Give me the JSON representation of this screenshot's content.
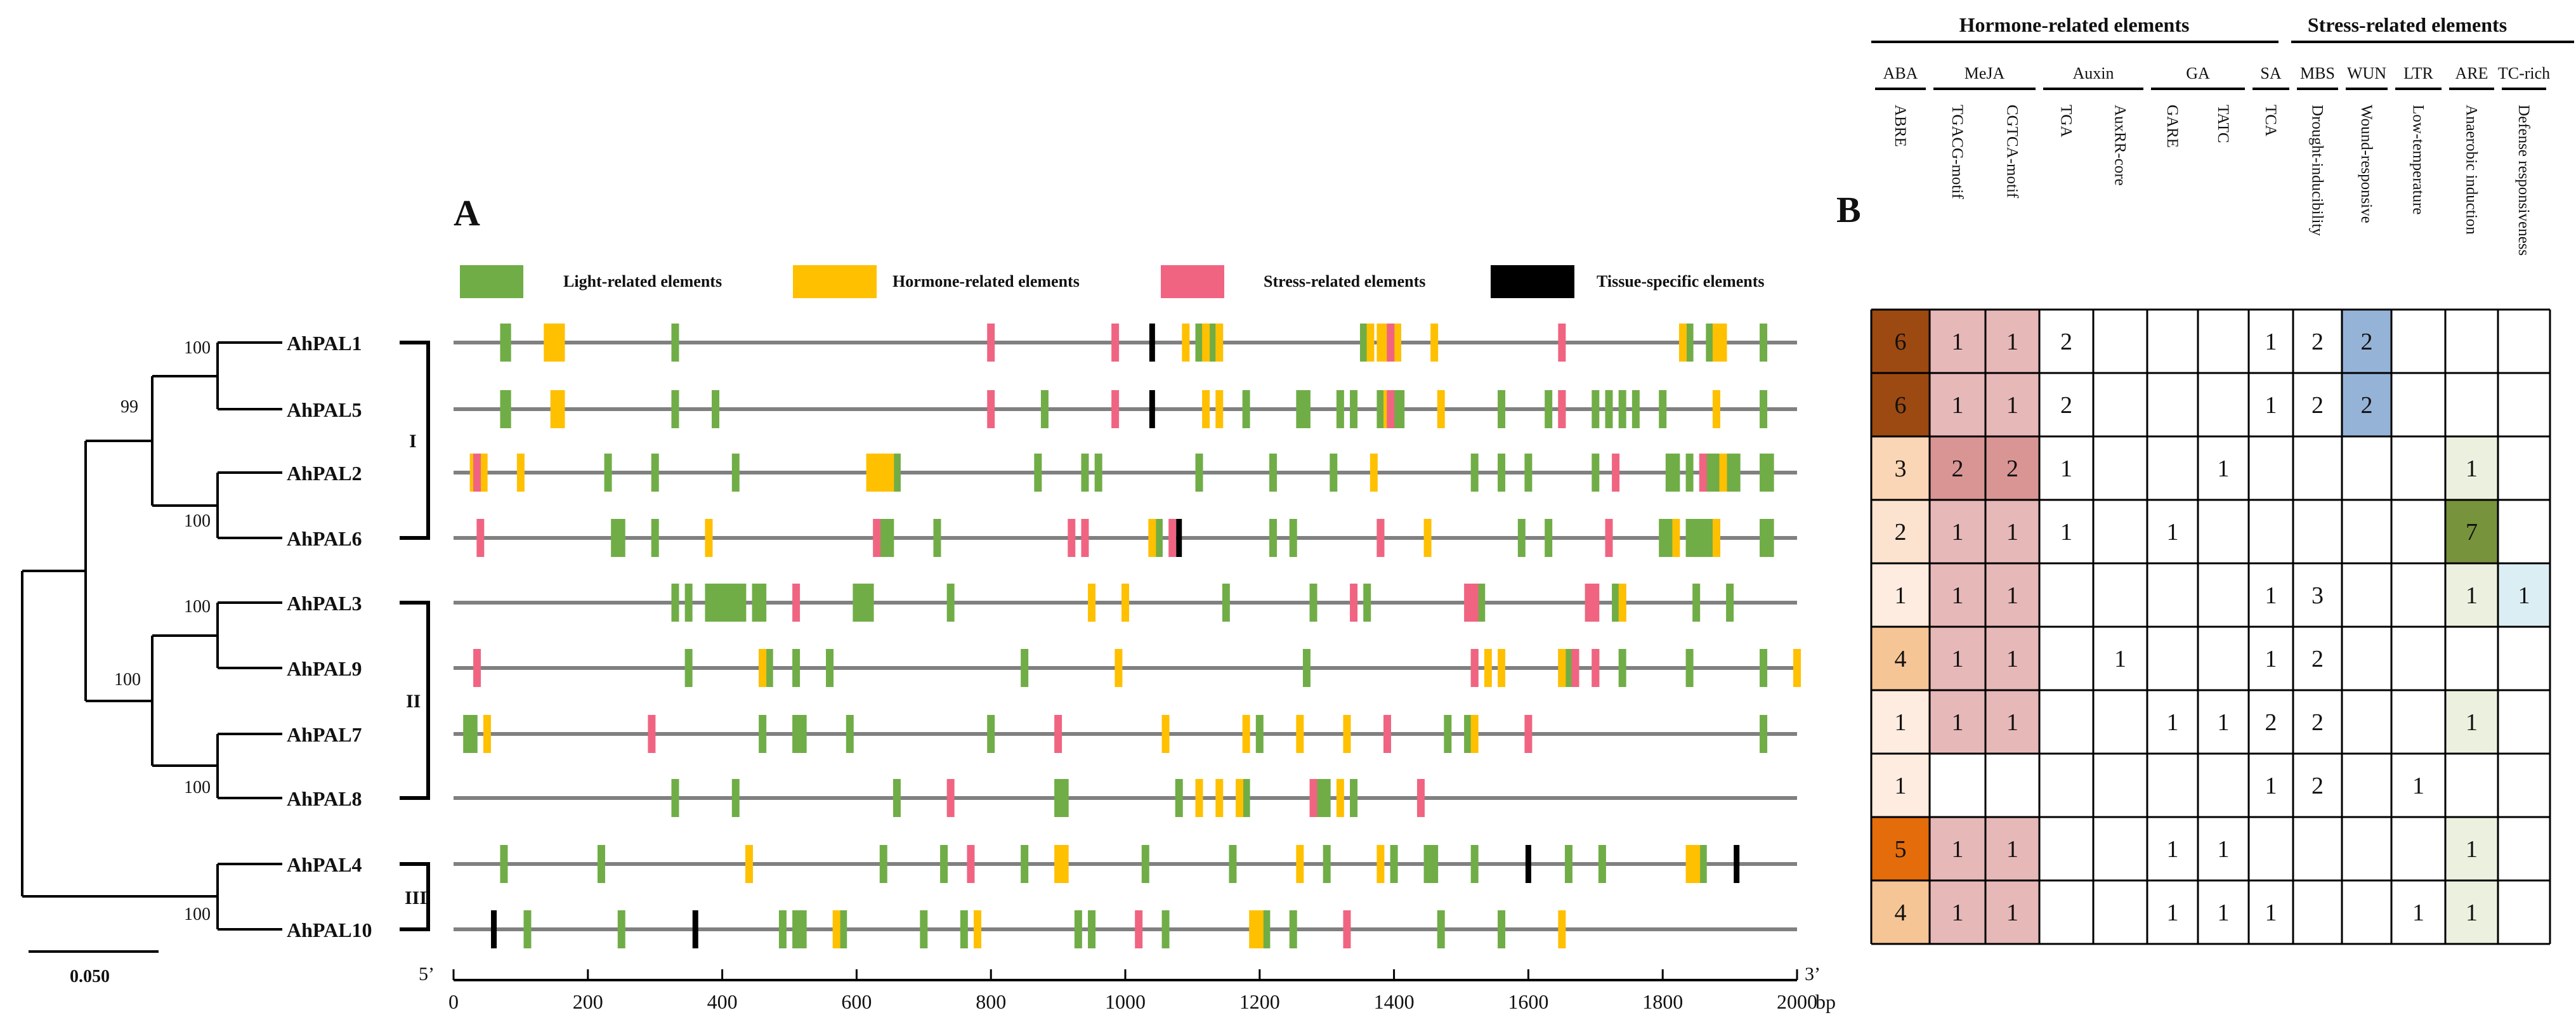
{
  "panel_a_label": "A",
  "panel_b_label": "B",
  "legend": [
    {
      "label": "Light-related elements",
      "color": "#70ad47"
    },
    {
      "label": "Hormone-related elements",
      "color": "#ffc000"
    },
    {
      "label": "Stress-related elements",
      "color": "#f06482"
    },
    {
      "label": "Tissue-specific  elements",
      "color": "#000000"
    }
  ],
  "genes": [
    "AhPAL1",
    "AhPAL5",
    "AhPAL2",
    "AhPAL6",
    "AhPAL3",
    "AhPAL9",
    "AhPAL7",
    "AhPAL8",
    "AhPAL4",
    "AhPAL10"
  ],
  "bootstrap": [
    "100",
    "99",
    "100",
    "100",
    "100",
    "100",
    "100"
  ],
  "groups": [
    "I",
    "II",
    "III"
  ],
  "scale_bar": "0.050",
  "axis": {
    "ticks": [
      "0",
      "200",
      "400",
      "600",
      "800",
      "1000",
      "1200",
      "1400",
      "1600",
      "1800",
      "2000"
    ],
    "unit": "bp",
    "five_prime": "5’",
    "three_prime": "3’",
    "max": 2000
  },
  "elements": [
    {
      "g": [
        75,
        80,
        150,
        160,
        330,
        1110,
        1130,
        1355,
        1385,
        1395,
        1405,
        1840,
        1870,
        1880,
        1950
      ],
      "y": [
        140,
        150,
        160,
        1090,
        1120,
        1140,
        1365,
        1380,
        1390,
        1405,
        1400,
        1460,
        1830,
        1880,
        1890
      ],
      "p": [
        800,
        985,
        1395,
        1650
      ],
      "k": [
        1040
      ]
    },
    {
      "g": [
        75,
        80,
        150,
        160,
        330,
        390,
        880,
        1180,
        1260,
        1270,
        1320,
        1340,
        1380,
        1400,
        1410,
        1560,
        1630,
        1650,
        1700,
        1720,
        1740,
        1760,
        1800,
        1950
      ],
      "y": [
        150,
        160,
        1120,
        1140,
        1390,
        1470,
        1880
      ],
      "p": [
        800,
        985,
        1395,
        1650
      ],
      "k": [
        1040
      ]
    },
    {
      "g": [
        30,
        40,
        230,
        300,
        420,
        660,
        870,
        940,
        960,
        1110,
        1220,
        1310,
        1520,
        1560,
        1600,
        1700,
        1810,
        1820,
        1840,
        1870,
        1880,
        1890,
        1900,
        1910,
        1950,
        1960
      ],
      "y": [
        30,
        45,
        100,
        620,
        630,
        640,
        650,
        1370,
        1890
      ],
      "p": [
        35,
        1730,
        1860
      ],
      "k": []
    },
    {
      "g": [
        240,
        250,
        300,
        640,
        650,
        720,
        1050,
        1220,
        1250,
        1380,
        1590,
        1630,
        1800,
        1810,
        1840,
        1850,
        1860,
        1870,
        1880,
        1950,
        1960
      ],
      "y": [
        380,
        1040,
        1450,
        1820,
        1880
      ],
      "p": [
        40,
        630,
        920,
        940,
        1070,
        1380,
        1720
      ],
      "k": [
        1080
      ]
    },
    {
      "g": [
        330,
        350,
        380,
        390,
        400,
        410,
        420,
        430,
        450,
        460,
        600,
        610,
        620,
        740,
        1150,
        1280,
        1360,
        1520,
        1530,
        1690,
        1730,
        1740,
        1850,
        1900
      ],
      "y": [
        950,
        1000,
        1740
      ],
      "p": [
        510,
        1340,
        1510,
        1520,
        1690,
        1700
      ],
      "k": []
    },
    {
      "g": [
        350,
        460,
        470,
        510,
        560,
        850,
        1270,
        1520,
        1650,
        1660,
        1700,
        1740,
        1840,
        1950
      ],
      "y": [
        460,
        990,
        1540,
        1560,
        1650,
        2000
      ],
      "p": [
        35,
        1520,
        1670,
        1700
      ],
      "k": []
    },
    {
      "g": [
        20,
        30,
        460,
        510,
        520,
        590,
        800,
        1200,
        1480,
        1510,
        1950
      ],
      "y": [
        50,
        1060,
        1180,
        1260,
        1330,
        1520
      ],
      "p": [
        295,
        900,
        1390,
        1600
      ],
      "k": []
    },
    {
      "g": [
        330,
        420,
        660,
        900,
        910,
        1080,
        1180,
        1290,
        1300,
        1340
      ],
      "y": [
        1110,
        1140,
        1170,
        1320
      ],
      "p": [
        740,
        1280,
        1440
      ],
      "k": []
    },
    {
      "g": [
        75,
        220,
        640,
        730,
        850,
        1030,
        1160,
        1300,
        1400,
        1450,
        1460,
        1520,
        1660,
        1710,
        1860
      ],
      "y": [
        440,
        900,
        910,
        1260,
        1380,
        1840,
        1850
      ],
      "p": [
        770
      ],
      "k": [
        1600,
        1910
      ]
    },
    {
      "g": [
        110,
        250,
        490,
        510,
        520,
        580,
        700,
        760,
        930,
        950,
        1060,
        1210,
        1250,
        1470,
        1560
      ],
      "y": [
        570,
        780,
        1190,
        1200,
        1650
      ],
      "p": [
        1020,
        1330
      ],
      "k": [
        60,
        360
      ]
    }
  ],
  "table": {
    "categories": [
      {
        "label": "Hormone-related elements"
      },
      {
        "label": "Stress-related elements"
      }
    ],
    "groups": [
      "ABA",
      "MeJA",
      "Auxin",
      "GA",
      "SA",
      "MBS",
      "WUN",
      "LTR",
      "ARE",
      "TC-rich"
    ],
    "columns": [
      "ABRE",
      "TGACG-motif",
      "CGTCA-motif",
      "TGA",
      "AuxRR-core",
      "GARE",
      "TATC",
      "TCA",
      "Drought-inducibility",
      "Wound-responsive",
      "Low-temperature",
      "Anaerobic induction",
      "Defense responsiveness"
    ],
    "rows": [
      [
        "6",
        "1",
        "1",
        "2",
        "",
        "",
        "",
        "1",
        "2",
        "2",
        "",
        "",
        ""
      ],
      [
        "6",
        "1",
        "1",
        "2",
        "",
        "",
        "",
        "1",
        "2",
        "2",
        "",
        "",
        ""
      ],
      [
        "3",
        "2",
        "2",
        "1",
        "",
        "",
        "1",
        "",
        "",
        "",
        "",
        "1",
        ""
      ],
      [
        "2",
        "1",
        "1",
        "1",
        "",
        "1",
        "",
        "",
        "",
        "",
        "",
        "7",
        ""
      ],
      [
        "1",
        "1",
        "1",
        "",
        "",
        "",
        "",
        "1",
        "3",
        "",
        "",
        "1",
        "1"
      ],
      [
        "4",
        "1",
        "1",
        "",
        "1",
        "",
        "",
        "1",
        "2",
        "",
        "",
        "",
        ""
      ],
      [
        "1",
        "1",
        "1",
        "",
        "",
        "1",
        "1",
        "2",
        "2",
        "",
        "",
        "1",
        ""
      ],
      [
        "1",
        "",
        "",
        "",
        "",
        "",
        "",
        "1",
        "2",
        "",
        "1",
        "",
        ""
      ],
      [
        "5",
        "1",
        "1",
        "",
        "",
        "1",
        "1",
        "",
        "",
        "",
        "",
        "1",
        ""
      ],
      [
        "4",
        "1",
        "1",
        "",
        "",
        "1",
        "1",
        "1",
        "",
        "",
        "1",
        "1",
        ""
      ]
    ],
    "fill_colors": {
      "aba": {
        "6": "#9c4a11",
        "5": "#e46c0a",
        "4": "#f6c596",
        "3": "#fad6b6",
        "2": "#fbe3cf",
        "1": "#fdecdf"
      },
      "meja": {
        "1": "#e7b8b8",
        "2": "#d99594"
      },
      "wun": "#95b3d7",
      "are": {
        "1": "#ebf1de",
        "7": "#77933c"
      },
      "tc": "#dbeef4"
    }
  }
}
